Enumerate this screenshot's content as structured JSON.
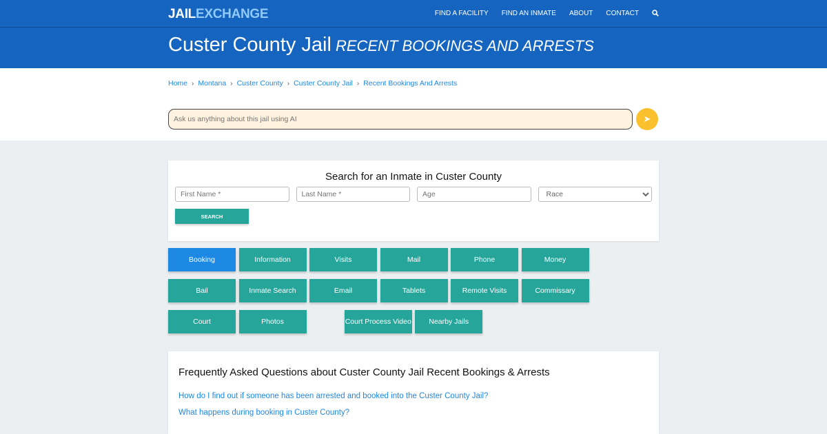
{
  "header": {
    "logo_a": "JAIL",
    "logo_b": "EXCHANGE",
    "nav": [
      "FIND A FACILITY",
      "FIND AN INMATE",
      "ABOUT",
      "CONTACT"
    ],
    "title": "Custer County Jail",
    "subtitle": "RECENT BOOKINGS AND ARRESTS"
  },
  "breadcrumb": [
    "Home",
    "Montana",
    "Custer County",
    "Custer County Jail",
    "Recent Bookings And Arrests"
  ],
  "ai": {
    "placeholder": "Ask us anything about this jail using AI"
  },
  "search": {
    "title": "Search for an Inmate in Custer County",
    "first": "First Name *",
    "last": "Last Name *",
    "age": "Age",
    "race": "Race",
    "button": "SEARCH"
  },
  "buttons": [
    "Booking",
    "Information",
    "Visits",
    "Mail",
    "Phone",
    "Money",
    "Bail",
    "Inmate Search",
    "Email",
    "Tablets",
    "Remote Visits",
    "Commissary",
    "Court",
    "Photos"
  ],
  "buttons_row3": [
    "Court Process Video",
    "Nearby Jails"
  ],
  "faq": {
    "title": "Frequently Asked Questions about Custer County Jail Recent Bookings & Arrests",
    "questions": [
      "How do I find out if someone has been arrested and booked into the Custer County Jail?",
      "What happens during booking in Custer County?"
    ]
  },
  "colors": {
    "primary": "#1565c0",
    "teal": "#26a69a",
    "active": "#1e88e5",
    "send": "#fbc02d"
  }
}
